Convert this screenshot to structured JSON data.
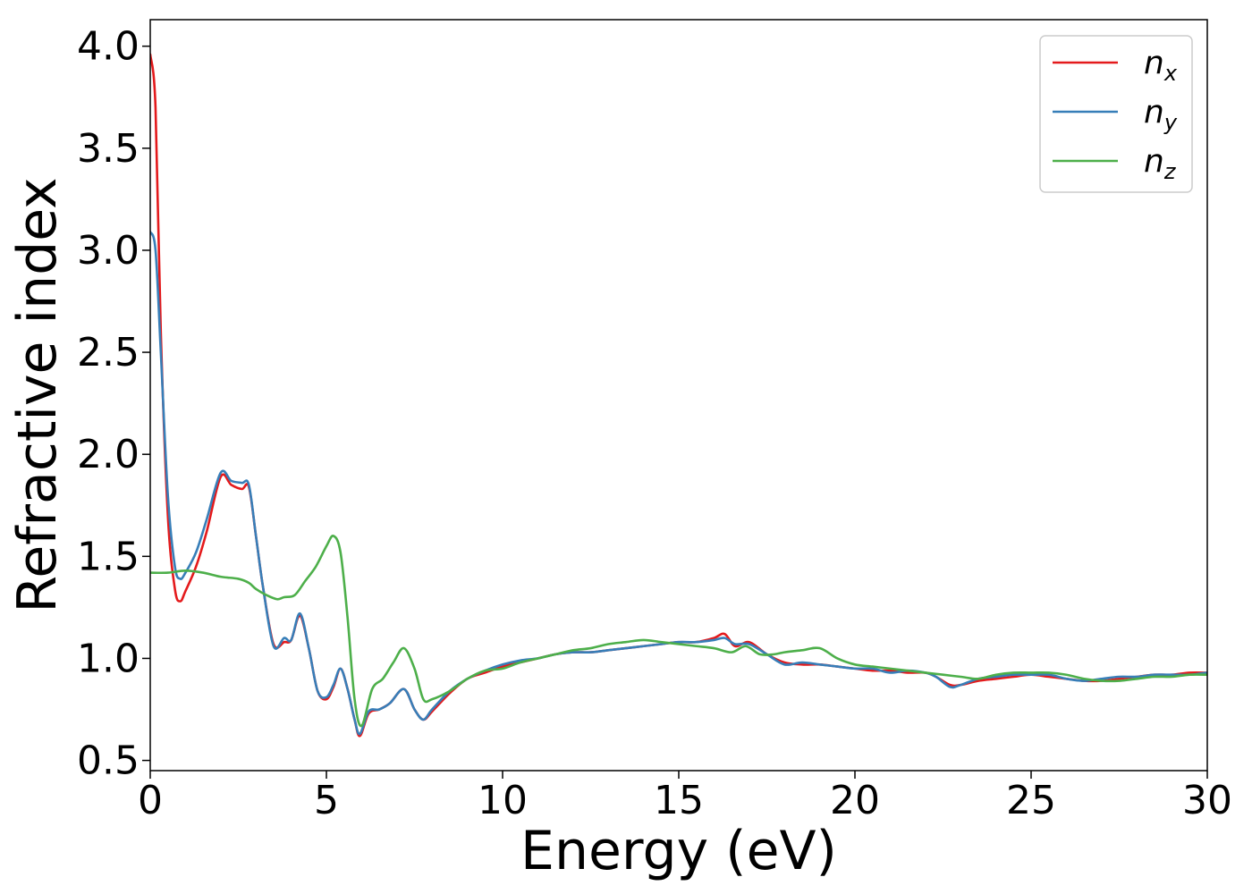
{
  "chart_data": {
    "type": "line",
    "title": "",
    "xlabel": "Energy (eV)",
    "ylabel": "Refractive index",
    "xlim": [
      0,
      30
    ],
    "ylim": [
      0.45,
      4.13
    ],
    "xticks": [
      0,
      5,
      10,
      15,
      20,
      25,
      30
    ],
    "yticks": [
      0.5,
      1.0,
      1.5,
      2.0,
      2.5,
      3.0,
      3.5,
      4.0
    ],
    "xtick_labels": [
      "0",
      "5",
      "10",
      "15",
      "20",
      "25",
      "30"
    ],
    "ytick_labels": [
      "0.5",
      "1.0",
      "1.5",
      "2.0",
      "2.5",
      "3.0",
      "3.5",
      "4.0"
    ],
    "grid": false,
    "legend_position": "top-right",
    "series": [
      {
        "name": "n",
        "subscript": "x",
        "color": "#e41a1c",
        "points": [
          [
            0,
            3.96
          ],
          [
            0.15,
            3.7
          ],
          [
            0.3,
            2.6
          ],
          [
            0.5,
            1.7
          ],
          [
            0.7,
            1.34
          ],
          [
            0.85,
            1.28
          ],
          [
            1.0,
            1.33
          ],
          [
            1.3,
            1.45
          ],
          [
            1.6,
            1.62
          ],
          [
            2.0,
            1.89
          ],
          [
            2.3,
            1.85
          ],
          [
            2.6,
            1.83
          ],
          [
            2.8,
            1.84
          ],
          [
            3.0,
            1.6
          ],
          [
            3.2,
            1.35
          ],
          [
            3.5,
            1.07
          ],
          [
            3.8,
            1.08
          ],
          [
            4.0,
            1.09
          ],
          [
            4.25,
            1.21
          ],
          [
            4.5,
            1.05
          ],
          [
            4.75,
            0.84
          ],
          [
            5.0,
            0.8
          ],
          [
            5.2,
            0.86
          ],
          [
            5.4,
            0.95
          ],
          [
            5.6,
            0.85
          ],
          [
            5.8,
            0.7
          ],
          [
            5.95,
            0.62
          ],
          [
            6.2,
            0.73
          ],
          [
            6.5,
            0.75
          ],
          [
            6.8,
            0.78
          ],
          [
            7.2,
            0.85
          ],
          [
            7.5,
            0.75
          ],
          [
            7.75,
            0.7
          ],
          [
            8.0,
            0.74
          ],
          [
            8.5,
            0.83
          ],
          [
            9.0,
            0.9
          ],
          [
            9.5,
            0.93
          ],
          [
            10.0,
            0.96
          ],
          [
            10.5,
            0.98
          ],
          [
            11.0,
            1.0
          ],
          [
            11.5,
            1.02
          ],
          [
            12.0,
            1.03
          ],
          [
            12.5,
            1.03
          ],
          [
            13.0,
            1.04
          ],
          [
            13.5,
            1.05
          ],
          [
            14.0,
            1.06
          ],
          [
            14.5,
            1.07
          ],
          [
            15.0,
            1.08
          ],
          [
            15.5,
            1.08
          ],
          [
            16.0,
            1.1
          ],
          [
            16.3,
            1.12
          ],
          [
            16.6,
            1.06
          ],
          [
            17.0,
            1.08
          ],
          [
            17.5,
            1.02
          ],
          [
            18.0,
            0.98
          ],
          [
            18.5,
            0.97
          ],
          [
            19.0,
            0.97
          ],
          [
            19.5,
            0.96
          ],
          [
            20.0,
            0.95
          ],
          [
            20.5,
            0.94
          ],
          [
            21.0,
            0.94
          ],
          [
            21.5,
            0.93
          ],
          [
            22.0,
            0.93
          ],
          [
            22.3,
            0.91
          ],
          [
            22.7,
            0.87
          ],
          [
            23.0,
            0.87
          ],
          [
            23.5,
            0.89
          ],
          [
            24.0,
            0.9
          ],
          [
            24.5,
            0.91
          ],
          [
            25.0,
            0.92
          ],
          [
            25.5,
            0.91
          ],
          [
            26.0,
            0.9
          ],
          [
            26.5,
            0.89
          ],
          [
            27.0,
            0.89
          ],
          [
            27.5,
            0.9
          ],
          [
            28.0,
            0.91
          ],
          [
            28.5,
            0.92
          ],
          [
            29.0,
            0.92
          ],
          [
            29.5,
            0.93
          ],
          [
            30.0,
            0.93
          ]
        ]
      },
      {
        "name": "n",
        "subscript": "y",
        "color": "#377eb8",
        "points": [
          [
            0,
            3.09
          ],
          [
            0.15,
            3.0
          ],
          [
            0.3,
            2.5
          ],
          [
            0.5,
            1.8
          ],
          [
            0.7,
            1.45
          ],
          [
            0.85,
            1.39
          ],
          [
            1.0,
            1.42
          ],
          [
            1.3,
            1.52
          ],
          [
            1.6,
            1.68
          ],
          [
            2.0,
            1.91
          ],
          [
            2.3,
            1.87
          ],
          [
            2.6,
            1.86
          ],
          [
            2.8,
            1.85
          ],
          [
            3.0,
            1.6
          ],
          [
            3.2,
            1.35
          ],
          [
            3.5,
            1.06
          ],
          [
            3.8,
            1.1
          ],
          [
            4.0,
            1.09
          ],
          [
            4.25,
            1.22
          ],
          [
            4.5,
            1.05
          ],
          [
            4.75,
            0.84
          ],
          [
            5.0,
            0.81
          ],
          [
            5.2,
            0.87
          ],
          [
            5.4,
            0.95
          ],
          [
            5.6,
            0.85
          ],
          [
            5.8,
            0.7
          ],
          [
            5.95,
            0.63
          ],
          [
            6.2,
            0.74
          ],
          [
            6.5,
            0.75
          ],
          [
            6.8,
            0.78
          ],
          [
            7.2,
            0.85
          ],
          [
            7.5,
            0.75
          ],
          [
            7.75,
            0.7
          ],
          [
            8.0,
            0.75
          ],
          [
            8.5,
            0.84
          ],
          [
            9.0,
            0.9
          ],
          [
            9.5,
            0.94
          ],
          [
            10.0,
            0.97
          ],
          [
            10.5,
            0.99
          ],
          [
            11.0,
            1.0
          ],
          [
            11.5,
            1.02
          ],
          [
            12.0,
            1.03
          ],
          [
            12.5,
            1.03
          ],
          [
            13.0,
            1.04
          ],
          [
            13.5,
            1.05
          ],
          [
            14.0,
            1.06
          ],
          [
            14.5,
            1.07
          ],
          [
            15.0,
            1.08
          ],
          [
            15.5,
            1.08
          ],
          [
            16.0,
            1.09
          ],
          [
            16.3,
            1.1
          ],
          [
            16.6,
            1.07
          ],
          [
            17.0,
            1.07
          ],
          [
            17.5,
            1.02
          ],
          [
            18.0,
            0.97
          ],
          [
            18.5,
            0.98
          ],
          [
            19.0,
            0.97
          ],
          [
            19.5,
            0.96
          ],
          [
            20.0,
            0.95
          ],
          [
            20.5,
            0.95
          ],
          [
            21.0,
            0.93
          ],
          [
            21.5,
            0.94
          ],
          [
            22.0,
            0.93
          ],
          [
            22.3,
            0.91
          ],
          [
            22.7,
            0.86
          ],
          [
            23.0,
            0.87
          ],
          [
            23.5,
            0.9
          ],
          [
            24.0,
            0.91
          ],
          [
            24.5,
            0.92
          ],
          [
            25.0,
            0.92
          ],
          [
            25.5,
            0.92
          ],
          [
            26.0,
            0.9
          ],
          [
            26.5,
            0.89
          ],
          [
            27.0,
            0.9
          ],
          [
            27.5,
            0.91
          ],
          [
            28.0,
            0.91
          ],
          [
            28.5,
            0.92
          ],
          [
            29.0,
            0.92
          ],
          [
            29.5,
            0.92
          ],
          [
            30.0,
            0.93
          ]
        ]
      },
      {
        "name": "n",
        "subscript": "z",
        "color": "#4daf4a",
        "points": [
          [
            0,
            1.42
          ],
          [
            0.5,
            1.42
          ],
          [
            1.0,
            1.43
          ],
          [
            1.5,
            1.42
          ],
          [
            2.0,
            1.4
          ],
          [
            2.5,
            1.39
          ],
          [
            2.8,
            1.37
          ],
          [
            3.0,
            1.34
          ],
          [
            3.3,
            1.31
          ],
          [
            3.6,
            1.29
          ],
          [
            3.8,
            1.3
          ],
          [
            4.1,
            1.31
          ],
          [
            4.4,
            1.38
          ],
          [
            4.7,
            1.45
          ],
          [
            5.0,
            1.55
          ],
          [
            5.2,
            1.6
          ],
          [
            5.4,
            1.52
          ],
          [
            5.6,
            1.2
          ],
          [
            5.8,
            0.8
          ],
          [
            6.0,
            0.67
          ],
          [
            6.3,
            0.85
          ],
          [
            6.6,
            0.9
          ],
          [
            6.9,
            0.98
          ],
          [
            7.2,
            1.05
          ],
          [
            7.5,
            0.95
          ],
          [
            7.75,
            0.8
          ],
          [
            8.0,
            0.8
          ],
          [
            8.5,
            0.84
          ],
          [
            9.0,
            0.9
          ],
          [
            9.5,
            0.94
          ],
          [
            10.0,
            0.95
          ],
          [
            10.5,
            0.98
          ],
          [
            11.0,
            1.0
          ],
          [
            11.5,
            1.02
          ],
          [
            12.0,
            1.04
          ],
          [
            12.5,
            1.05
          ],
          [
            13.0,
            1.07
          ],
          [
            13.5,
            1.08
          ],
          [
            14.0,
            1.09
          ],
          [
            14.5,
            1.08
          ],
          [
            15.0,
            1.07
          ],
          [
            15.5,
            1.06
          ],
          [
            16.0,
            1.05
          ],
          [
            16.5,
            1.03
          ],
          [
            16.9,
            1.06
          ],
          [
            17.3,
            1.02
          ],
          [
            17.7,
            1.02
          ],
          [
            18.0,
            1.03
          ],
          [
            18.5,
            1.04
          ],
          [
            19.0,
            1.05
          ],
          [
            19.5,
            1.0
          ],
          [
            20.0,
            0.97
          ],
          [
            20.5,
            0.96
          ],
          [
            21.0,
            0.95
          ],
          [
            21.5,
            0.94
          ],
          [
            22.0,
            0.93
          ],
          [
            22.5,
            0.92
          ],
          [
            23.0,
            0.91
          ],
          [
            23.5,
            0.9
          ],
          [
            24.0,
            0.92
          ],
          [
            24.5,
            0.93
          ],
          [
            25.0,
            0.93
          ],
          [
            25.5,
            0.93
          ],
          [
            26.0,
            0.92
          ],
          [
            26.5,
            0.9
          ],
          [
            27.0,
            0.89
          ],
          [
            27.5,
            0.89
          ],
          [
            28.0,
            0.9
          ],
          [
            28.5,
            0.91
          ],
          [
            29.0,
            0.91
          ],
          [
            29.5,
            0.92
          ],
          [
            30.0,
            0.92
          ]
        ]
      }
    ]
  }
}
